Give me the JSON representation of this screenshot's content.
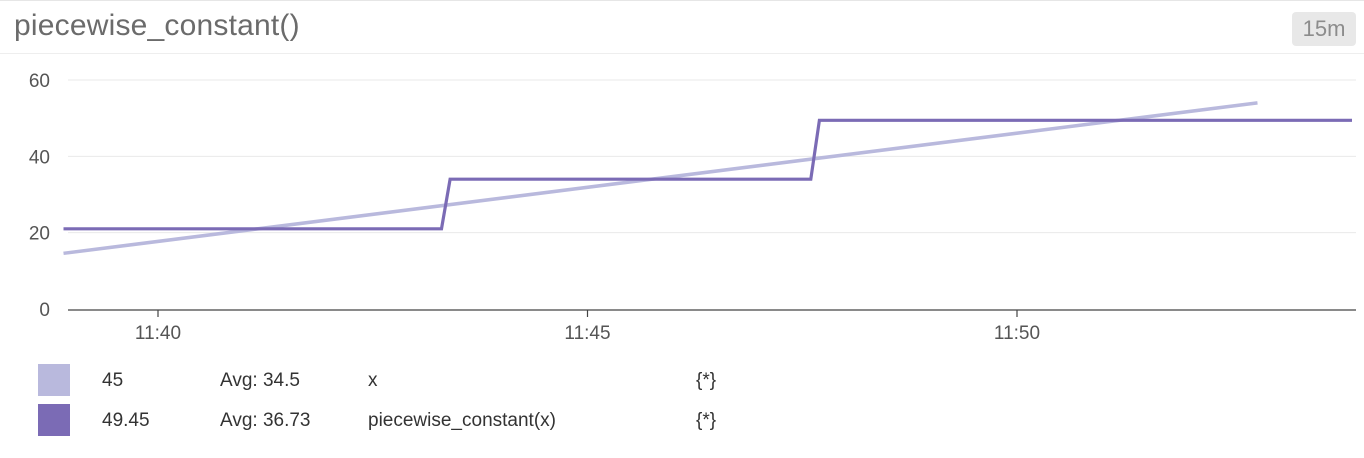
{
  "widget": {
    "title": "piecewise_constant()",
    "time_badge": "15m"
  },
  "chart_data": {
    "type": "line",
    "x_ticks": [
      "11:40",
      "11:45",
      "11:50"
    ],
    "y_ticks": [
      0,
      20,
      40,
      60
    ],
    "ylim": [
      0,
      60
    ],
    "x_range_minutes": [
      "11:39",
      "11:54"
    ],
    "grid": true,
    "series": [
      {
        "name": "x",
        "color": "#b9b9dd",
        "points": [
          [
            "11:38.9",
            14.6
          ],
          [
            "11:52.8",
            54.0
          ]
        ]
      },
      {
        "name": "piecewise_constant(x)",
        "color": "#7b6bb5",
        "step": true,
        "points": [
          [
            "11:38.9",
            21.0
          ],
          [
            "11:43.3",
            21.0
          ],
          [
            "11:43.4",
            34.0
          ],
          [
            "11:47.6",
            34.0
          ],
          [
            "11:47.7",
            49.45
          ],
          [
            "11:53.9",
            49.45
          ]
        ]
      }
    ]
  },
  "legend": [
    {
      "color": "#b9b9dd",
      "value": "45",
      "avg": "Avg: 34.5",
      "name": "x",
      "scope": "{*}"
    },
    {
      "color": "#7b6bb5",
      "value": "49.45",
      "avg": "Avg: 36.73",
      "name": "piecewise_constant(x)",
      "scope": "{*}"
    }
  ]
}
